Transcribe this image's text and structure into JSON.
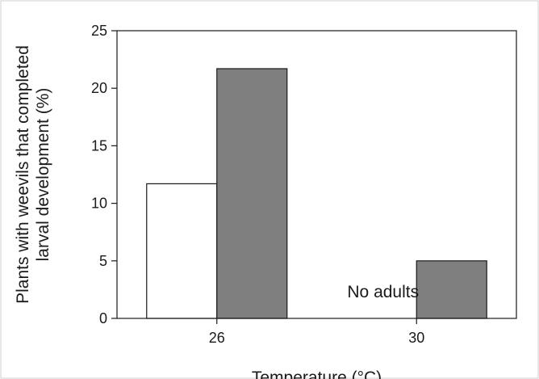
{
  "chart_data": {
    "type": "bar",
    "xlabel": "Temperature (°C)",
    "ylabel": [
      "Plants with weevils that completed",
      "larval development (%)"
    ],
    "ylim": [
      0,
      25
    ],
    "yticks": [
      0,
      5,
      10,
      15,
      20,
      25
    ],
    "grid": false,
    "categories": [
      "26",
      "30"
    ],
    "series": [
      {
        "values": [
          11.7,
          0
        ],
        "color": "#ffffff"
      },
      {
        "values": [
          21.7,
          5.0
        ],
        "color": "#7f7f7f"
      }
    ],
    "annotations": [
      {
        "text": "No adults",
        "category": "30",
        "series": 0
      }
    ]
  }
}
